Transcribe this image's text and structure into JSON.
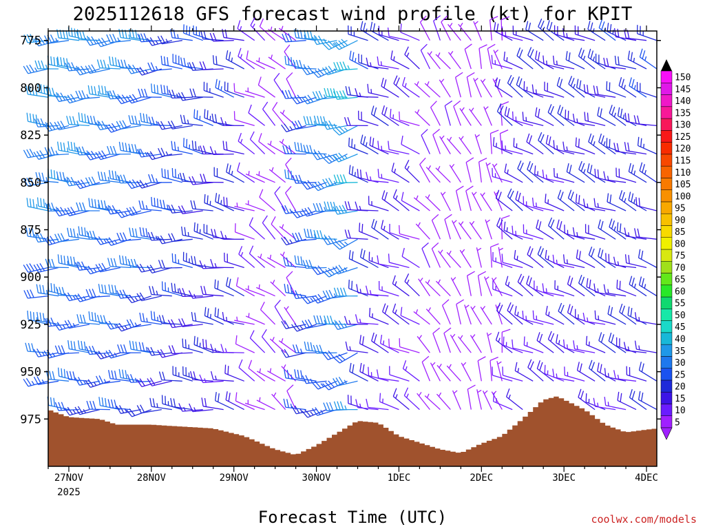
{
  "chart_data": {
    "type": "wind-profile",
    "title": "2025112618 GFS forecast wind profile (kt) for KPIT",
    "xlabel": "Forecast Time (UTC)",
    "ylabel": "",
    "ylim": [
      770,
      1000
    ],
    "y_ticks": [
      775,
      800,
      825,
      850,
      875,
      900,
      925,
      950,
      975
    ],
    "x_range_hours": [
      0,
      177
    ],
    "x_ticks": [
      {
        "label": "27NOV",
        "hour": 6
      },
      {
        "label": "28NOV",
        "hour": 30
      },
      {
        "label": "29NOV",
        "hour": 54
      },
      {
        "label": "30NOV",
        "hour": 78
      },
      {
        "label": "1DEC",
        "hour": 102
      },
      {
        "label": "2DEC",
        "hour": 126
      },
      {
        "label": "3DEC",
        "hour": 150
      },
      {
        "label": "4DEC",
        "hour": 174
      }
    ],
    "x_year_label": "2025",
    "barb_levels": [
      775,
      790,
      805,
      820,
      835,
      850,
      865,
      880,
      895,
      910,
      925,
      940,
      955,
      970
    ],
    "barb_step_hours": 3,
    "speed_segments": [
      {
        "hours": [
          0,
          30
        ],
        "speed": [
          38,
          34
        ],
        "dir": [
          270,
          265
        ]
      },
      {
        "hours": [
          30,
          57
        ],
        "speed": [
          30,
          22
        ],
        "dir": [
          265,
          285
        ]
      },
      {
        "hours": [
          57,
          72
        ],
        "speed": [
          12,
          7
        ],
        "dir": [
          290,
          320
        ]
      },
      {
        "hours": [
          72,
          90
        ],
        "speed": [
          28,
          42
        ],
        "dir": [
          270,
          255
        ]
      },
      {
        "hours": [
          90,
          108
        ],
        "speed": [
          25,
          14
        ],
        "dir": [
          280,
          300
        ]
      },
      {
        "hours": [
          108,
          132
        ],
        "speed": [
          8,
          6
        ],
        "dir": [
          320,
          345
        ]
      },
      {
        "hours": [
          132,
          177
        ],
        "speed": [
          18,
          24
        ],
        "dir": [
          300,
          290
        ]
      }
    ],
    "terrain_pressure": [
      {
        "hour": 0,
        "p": 970
      },
      {
        "hour": 6,
        "p": 974
      },
      {
        "hour": 15,
        "p": 975
      },
      {
        "hour": 20,
        "p": 978
      },
      {
        "hour": 30,
        "p": 978
      },
      {
        "hour": 48,
        "p": 980
      },
      {
        "hour": 57,
        "p": 984
      },
      {
        "hour": 66,
        "p": 991
      },
      {
        "hour": 72,
        "p": 994
      },
      {
        "hour": 78,
        "p": 989
      },
      {
        "hour": 90,
        "p": 976
      },
      {
        "hour": 96,
        "p": 977
      },
      {
        "hour": 102,
        "p": 984
      },
      {
        "hour": 114,
        "p": 991
      },
      {
        "hour": 120,
        "p": 993
      },
      {
        "hour": 126,
        "p": 988
      },
      {
        "hour": 132,
        "p": 984
      },
      {
        "hour": 138,
        "p": 975
      },
      {
        "hour": 144,
        "p": 965
      },
      {
        "hour": 148,
        "p": 963
      },
      {
        "hour": 156,
        "p": 970
      },
      {
        "hour": 162,
        "p": 978
      },
      {
        "hour": 168,
        "p": 982
      },
      {
        "hour": 177,
        "p": 980
      }
    ],
    "colorbar": {
      "ticks": [
        5,
        10,
        15,
        20,
        25,
        30,
        35,
        40,
        45,
        50,
        55,
        60,
        65,
        70,
        75,
        80,
        85,
        90,
        95,
        100,
        105,
        110,
        115,
        120,
        125,
        130,
        135,
        140,
        145,
        150
      ],
      "colors": [
        "#a020ff",
        "#6a1cff",
        "#3c14e6",
        "#1f2ad9",
        "#1a52f0",
        "#1e78ee",
        "#1f98e8",
        "#18b8d8",
        "#1ad9c8",
        "#17e8a8",
        "#10d870",
        "#28e828",
        "#62e81a",
        "#a0e01a",
        "#d8e810",
        "#f0f000",
        "#f8da00",
        "#f8c000",
        "#f8a800",
        "#f89000",
        "#f87a00",
        "#f86400",
        "#f84800",
        "#f82c00",
        "#f81818",
        "#f8185a",
        "#f81898",
        "#f018c8",
        "#e018e8",
        "#f810f8"
      ]
    },
    "terrain_color": "#a0522d"
  },
  "footer": {
    "credit": "coolwx.com/models"
  }
}
